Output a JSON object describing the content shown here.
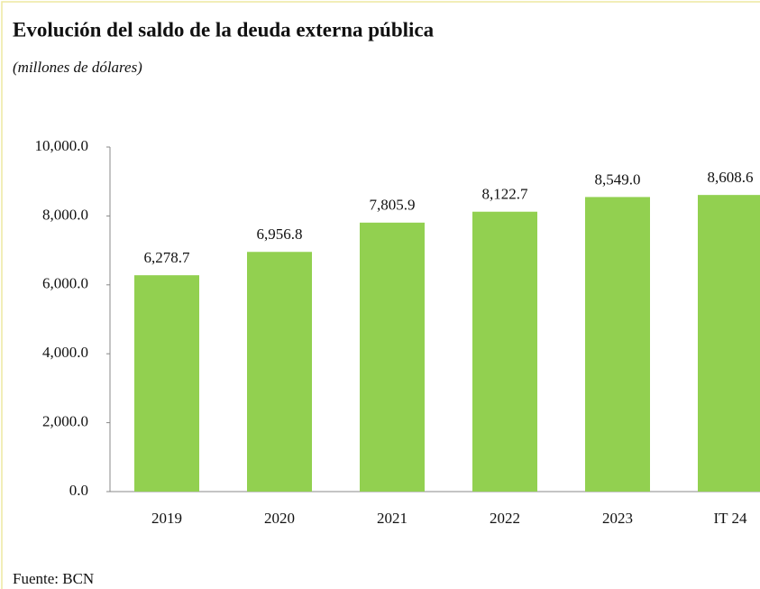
{
  "chart_data": {
    "type": "bar",
    "title": "Evolución del saldo de la deuda externa pública",
    "subtitle": "(millones de dólares)",
    "source": "Fuente: BCN",
    "categories": [
      "2019",
      "2020",
      "2021",
      "2022",
      "2023",
      "IT 24"
    ],
    "values": [
      6278.7,
      6956.8,
      7805.9,
      8122.7,
      8549.0,
      8608.6
    ],
    "value_labels": [
      "6,278.7",
      "6,956.8",
      "7,805.9",
      "8,122.7",
      "8,549.0",
      "8,608.6"
    ],
    "color": "#92d050",
    "ylim": [
      0,
      10000
    ],
    "yticks": [
      {
        "value": 0,
        "label": "0.0"
      },
      {
        "value": 2000,
        "label": "2,000.0"
      },
      {
        "value": 4000,
        "label": "4,000.0"
      },
      {
        "value": 6000,
        "label": "6,000.0"
      },
      {
        "value": 8000,
        "label": "8,000.0"
      },
      {
        "value": 10000,
        "label": "10,000.0"
      }
    ],
    "grid": false
  }
}
